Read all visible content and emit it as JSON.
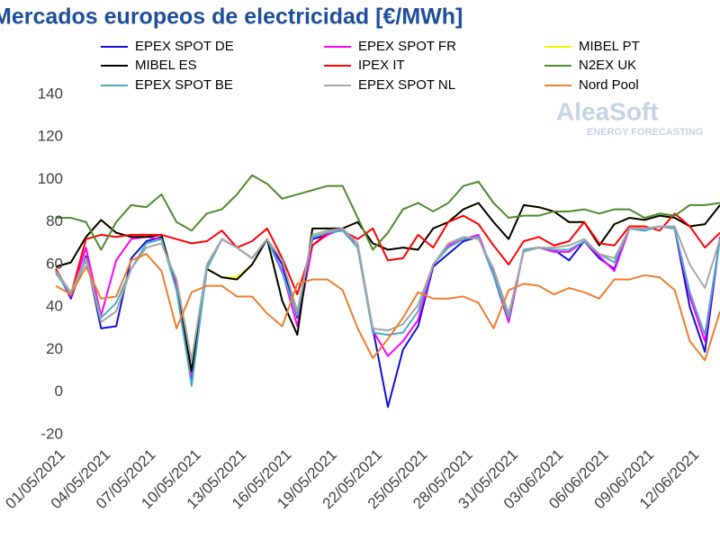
{
  "chart_data": {
    "type": "line",
    "title": "Mercados europeos de electricidad [€/MWh]",
    "watermark": {
      "name": "AleaSoft",
      "tagline": "ENERGY FORECASTING"
    },
    "categories": [
      "01/05/2021",
      null,
      null,
      "04/05/2021",
      null,
      null,
      "07/05/2021",
      null,
      null,
      "10/05/2021",
      null,
      null,
      "13/05/2021",
      null,
      null,
      "16/05/2021",
      null,
      null,
      "19/05/2021",
      null,
      null,
      "22/05/2021",
      null,
      null,
      "25/05/2021",
      null,
      null,
      "28/05/2021",
      null,
      null,
      "31/05/2021",
      null,
      null,
      "03/06/2021",
      null,
      null,
      "06/06/2021",
      null,
      null,
      "09/06/2021",
      null,
      null,
      "12/06/2021",
      null,
      null
    ],
    "ylim": [
      -20,
      140
    ],
    "yticks": [
      -20,
      0,
      20,
      40,
      60,
      80,
      100,
      120,
      140
    ],
    "grid": false,
    "series": [
      {
        "name": "EPEX SPOT DE",
        "color": "#1010d0",
        "values": [
          58,
          44,
          64,
          30,
          31,
          63,
          71,
          73,
          50,
          5,
          58,
          72,
          68,
          63,
          72,
          60,
          35,
          72,
          74,
          77,
          68,
          30,
          -7,
          20,
          31,
          59,
          65,
          71,
          73,
          55,
          33,
          67,
          68,
          67,
          62,
          71,
          63,
          58,
          77,
          76,
          78,
          77,
          40,
          19,
          73
        ]
      },
      {
        "name": "EPEX SPOT FR",
        "color": "#ff00ff",
        "values": [
          57,
          45,
          68,
          36,
          62,
          72,
          73,
          72,
          50,
          8,
          58,
          72,
          68,
          63,
          72,
          57,
          31,
          69,
          74,
          77,
          68,
          29,
          17,
          24,
          34,
          60,
          69,
          72,
          74,
          56,
          33,
          67,
          68,
          66,
          66,
          71,
          64,
          57,
          77,
          76,
          78,
          77,
          45,
          24,
          73
        ]
      },
      {
        "name": "MIBEL PT",
        "color": "#f5f500",
        "values": [
          59,
          61,
          73,
          81,
          75,
          73,
          73,
          74,
          48,
          10,
          58,
          54,
          54,
          60,
          72,
          43,
          27,
          77,
          77,
          77,
          80,
          70,
          67,
          68,
          67,
          77,
          80,
          86,
          89,
          80,
          72,
          88,
          87,
          85,
          80,
          80,
          69,
          79,
          82,
          81,
          83,
          82,
          78,
          79,
          88
        ]
      },
      {
        "name": "MIBEL ES",
        "color": "#000000",
        "values": [
          59,
          61,
          73,
          81,
          75,
          73,
          73,
          74,
          48,
          10,
          58,
          54,
          53,
          60,
          72,
          43,
          27,
          77,
          77,
          77,
          80,
          70,
          67,
          68,
          67,
          77,
          80,
          86,
          89,
          80,
          72,
          88,
          87,
          85,
          80,
          80,
          69,
          79,
          82,
          81,
          83,
          82,
          78,
          79,
          88
        ]
      },
      {
        "name": "IPEX IT",
        "color": "#ff0000",
        "values": [
          58,
          46,
          72,
          74,
          73,
          74,
          74,
          74,
          72,
          70,
          71,
          76,
          68,
          71,
          77,
          63,
          46,
          69,
          75,
          76,
          72,
          77,
          62,
          63,
          74,
          68,
          80,
          83,
          79,
          69,
          60,
          71,
          73,
          69,
          71,
          80,
          70,
          69,
          78,
          78,
          76,
          84,
          78,
          68,
          75
        ]
      },
      {
        "name": "N2EX UK",
        "color": "#4e8a2e",
        "values": [
          82,
          82,
          80,
          67,
          80,
          88,
          87,
          93,
          80,
          76,
          84,
          86,
          93,
          102,
          98,
          91,
          93,
          95,
          97,
          97,
          82,
          67,
          75,
          86,
          89,
          85,
          89,
          97,
          99,
          89,
          82,
          83,
          83,
          85,
          85,
          86,
          84,
          86,
          86,
          82,
          84,
          83,
          88,
          88,
          89
        ]
      },
      {
        "name": "EPEX SPOT BE",
        "color": "#4bacc6",
        "values": [
          56,
          46,
          62,
          35,
          42,
          58,
          70,
          72,
          48,
          3,
          58,
          72,
          68,
          63,
          72,
          56,
          36,
          73,
          75,
          76,
          68,
          28,
          27,
          28,
          38,
          60,
          68,
          72,
          73,
          55,
          35,
          67,
          68,
          67,
          67,
          71,
          65,
          61,
          77,
          76,
          78,
          77,
          47,
          27,
          72
        ]
      },
      {
        "name": "EPEX SPOT NL",
        "color": "#a6a6a6",
        "values": [
          57,
          47,
          63,
          33,
          38,
          58,
          68,
          70,
          53,
          15,
          60,
          72,
          68,
          63,
          72,
          62,
          38,
          74,
          76,
          77,
          70,
          30,
          29,
          32,
          41,
          60,
          70,
          73,
          72,
          58,
          37,
          66,
          68,
          68,
          69,
          72,
          65,
          63,
          77,
          77,
          78,
          78,
          60,
          49,
          72
        ]
      },
      {
        "name": "Nord Pool",
        "color": "#ed7d31",
        "values": [
          50,
          46,
          59,
          44,
          45,
          62,
          65,
          57,
          30,
          47,
          50,
          50,
          45,
          45,
          37,
          31,
          51,
          53,
          53,
          48,
          30,
          16,
          25,
          35,
          47,
          44,
          44,
          45,
          42,
          30,
          48,
          51,
          50,
          46,
          49,
          47,
          44,
          53,
          53,
          55,
          54,
          48,
          24,
          15,
          38
        ]
      }
    ]
  }
}
